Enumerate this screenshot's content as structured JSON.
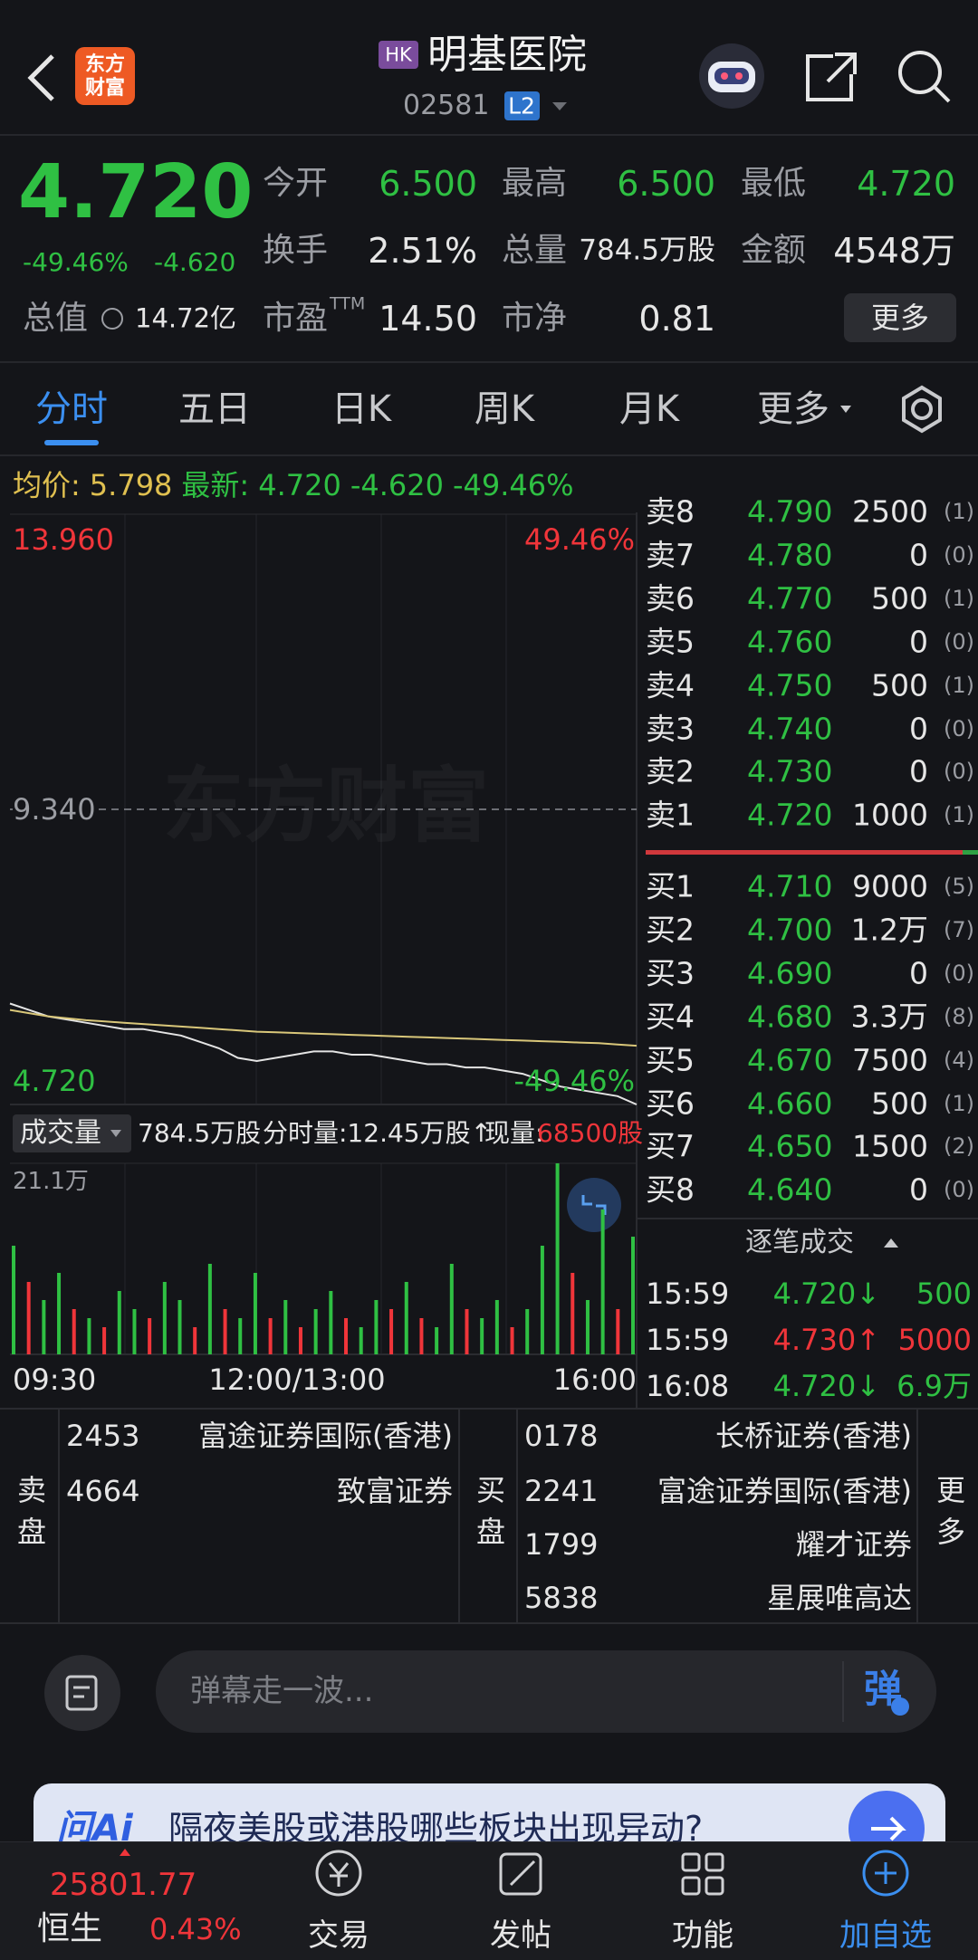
{
  "header": {
    "logo": [
      "东方",
      "财富"
    ],
    "market": "HK",
    "name": "明基医院",
    "code": "02581",
    "level": "L2"
  },
  "quote": {
    "price": "4.720",
    "change_pct": "-49.46%",
    "change": "-4.620",
    "stats": [
      {
        "label": "今开",
        "value": "6.500"
      },
      {
        "label": "最高",
        "value": "6.500"
      },
      {
        "label": "最低",
        "value": "4.720"
      },
      {
        "label": "换手",
        "value": "2.51%"
      },
      {
        "label": "总量",
        "value": "784.5万股"
      },
      {
        "label": "金额",
        "value": "4548万"
      },
      {
        "label": "总值",
        "value": "14.72亿"
      },
      {
        "label": "市盈",
        "sup": "TTM",
        "value": "14.50"
      },
      {
        "label": "市净",
        "value": "0.81"
      }
    ],
    "more": "更多"
  },
  "tabs": {
    "items": [
      "分时",
      "五日",
      "日K",
      "周K",
      "月K",
      "更多"
    ],
    "active": 0
  },
  "info": {
    "avg": "5.798",
    "latest": "4.720",
    "change": "-4.620",
    "change_pct": "-49.46%"
  },
  "watermark": "东方财富",
  "chart_data": [
    {
      "type": "line",
      "series": [
        {
          "name": "最新:",
          "color": "#e4e4e4",
          "values": [
            6.3,
            6.2,
            6.1,
            6.05,
            6.0,
            5.95,
            5.9,
            5.9,
            5.85,
            5.8,
            5.7,
            5.6,
            5.45,
            5.4,
            5.45,
            5.5,
            5.55,
            5.55,
            5.5,
            5.5,
            5.45,
            5.4,
            5.35,
            5.35,
            5.3,
            5.3,
            5.25,
            5.2,
            5.1,
            5.0,
            4.95,
            4.9,
            4.85,
            4.72
          ]
        },
        {
          "name": "均价:",
          "color": "#d9c77a",
          "values": [
            6.2,
            6.15,
            6.1,
            6.07,
            6.04,
            6.02,
            6.0,
            5.98,
            5.96,
            5.94,
            5.92,
            5.9,
            5.88,
            5.86,
            5.85,
            5.84,
            5.83,
            5.82,
            5.81,
            5.8,
            5.79,
            5.78,
            5.77,
            5.76,
            5.75,
            5.74,
            5.73,
            5.72,
            5.71,
            5.7,
            5.69,
            5.68,
            5.66,
            5.64
          ]
        }
      ],
      "ylim": [
        4.72,
        13.96
      ],
      "yticks": [
        {
          "value": 13.96,
          "label": "13.960"
        },
        {
          "value": 9.34,
          "label": "9.340"
        },
        {
          "value": 4.72,
          "label": "4.720"
        }
      ],
      "y2lim": [
        -49.46,
        49.46
      ],
      "y2ticks": [
        {
          "value": 49.46,
          "label": "49.46%"
        },
        {
          "value": -49.46,
          "label": "-49.46%"
        }
      ]
    },
    {
      "type": "bar",
      "title": "成交量",
      "values": [
        12,
        8,
        6,
        9,
        5,
        4,
        3,
        7,
        5,
        4,
        8,
        6,
        3,
        10,
        5,
        4,
        9,
        4,
        6,
        3,
        5,
        7,
        4,
        3,
        6,
        5,
        8,
        4,
        3,
        10,
        5,
        4,
        6,
        3,
        5,
        12,
        21.1,
        9,
        6,
        16,
        5,
        13
      ],
      "colors": [
        "#2fc043",
        "#f0353a",
        "#2fc043",
        "#2fc043",
        "#f0353a",
        "#2fc043",
        "#f0353a",
        "#2fc043",
        "#2fc043",
        "#f0353a",
        "#2fc043",
        "#2fc043",
        "#f0353a",
        "#2fc043",
        "#f0353a",
        "#2fc043",
        "#2fc043",
        "#f0353a",
        "#2fc043",
        "#f0353a",
        "#2fc043",
        "#2fc043",
        "#f0353a",
        "#2fc043",
        "#2fc043",
        "#f0353a",
        "#2fc043",
        "#f0353a",
        "#2fc043",
        "#2fc043",
        "#f0353a",
        "#2fc043",
        "#2fc043",
        "#f0353a",
        "#2fc043",
        "#2fc043",
        "#2fc043",
        "#f0353a",
        "#2fc043",
        "#2fc043",
        "#f0353a",
        "#2fc043"
      ],
      "ylim": [
        0,
        21.1
      ],
      "yticks": [
        {
          "value": 21.1,
          "label": "21.1万"
        }
      ]
    }
  ],
  "time_labels": [
    "09:30",
    "12:00/13:00",
    "16:00"
  ],
  "volume_header": {
    "total": "784.5万股",
    "period": "分时量:12.45万股↑",
    "current_label": "现量:",
    "current": "68500股"
  },
  "order_book": {
    "asks": [
      [
        "卖8",
        "4.790",
        "2500",
        "(1)"
      ],
      [
        "卖7",
        "4.780",
        "0",
        "(0)"
      ],
      [
        "卖6",
        "4.770",
        "500",
        "(1)"
      ],
      [
        "卖5",
        "4.760",
        "0",
        "(0)"
      ],
      [
        "卖4",
        "4.750",
        "500",
        "(1)"
      ],
      [
        "卖3",
        "4.740",
        "0",
        "(0)"
      ],
      [
        "卖2",
        "4.730",
        "0",
        "(0)"
      ],
      [
        "卖1",
        "4.720",
        "1000",
        "(1)"
      ]
    ],
    "bids": [
      [
        "买1",
        "4.710",
        "9000",
        "(5)"
      ],
      [
        "买2",
        "4.700",
        "1.2万",
        "(7)"
      ],
      [
        "买3",
        "4.690",
        "0",
        "(0)"
      ],
      [
        "买4",
        "4.680",
        "3.3万",
        "(8)"
      ],
      [
        "买5",
        "4.670",
        "7500",
        "(4)"
      ],
      [
        "买6",
        "4.660",
        "500",
        "(1)"
      ],
      [
        "买7",
        "4.650",
        "1500",
        "(2)"
      ],
      [
        "买8",
        "4.640",
        "0",
        "(0)"
      ]
    ]
  },
  "trades": {
    "title": "逐笔成交",
    "rows": [
      [
        "15:59",
        "4.720↓",
        "500"
      ],
      [
        "15:59",
        "4.730↑",
        "5000"
      ],
      [
        "16:08",
        "4.720↓",
        "6.9万"
      ]
    ]
  },
  "brokers": {
    "sell_label": "卖盘",
    "sell": [
      [
        "2453",
        "富途证券国际(香港)"
      ],
      [
        "4664",
        "致富证券"
      ]
    ],
    "buy_label": "买盘",
    "buy": [
      [
        "0178",
        "长桥证券(香港)"
      ],
      [
        "2241",
        "富途证券国际(香港)"
      ],
      [
        "1799",
        "耀才证券"
      ],
      [
        "5838",
        "星展唯高达"
      ]
    ],
    "more": "更多"
  },
  "comment": {
    "placeholder": "弹幕走一波...",
    "button": "弹"
  },
  "banner": {
    "logo": "问Ai",
    "text": "隔夜美股或港股哪些板块出现异动?"
  },
  "nav": {
    "index": {
      "value": "25801.77",
      "name": "恒生",
      "change": "0.43%"
    },
    "items": [
      "交易",
      "发帖",
      "功能",
      "加自选"
    ]
  }
}
